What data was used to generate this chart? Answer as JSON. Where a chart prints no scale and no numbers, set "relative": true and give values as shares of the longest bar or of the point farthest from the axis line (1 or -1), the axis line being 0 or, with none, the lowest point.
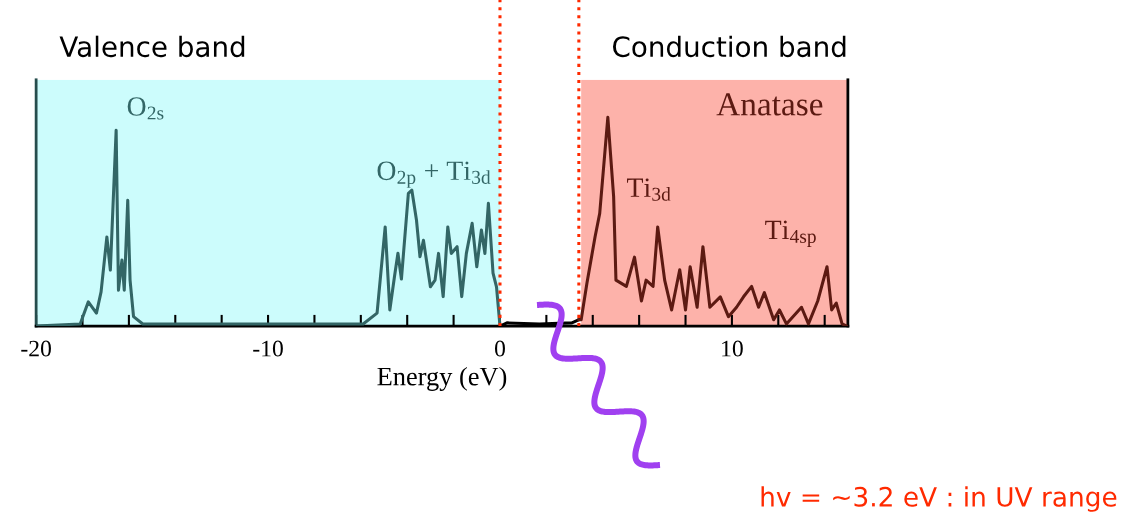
{
  "chart_data": {
    "type": "line",
    "relative": true,
    "xlabel": "Energy (eV)",
    "xlim": [
      -20,
      15
    ],
    "xticks": [
      {
        "value": -20,
        "label": "-20"
      },
      {
        "value": -18,
        "label": null
      },
      {
        "value": -16,
        "label": null
      },
      {
        "value": -14,
        "label": null
      },
      {
        "value": -12,
        "label": null
      },
      {
        "value": -10,
        "label": "-10"
      },
      {
        "value": -8,
        "label": null
      },
      {
        "value": -6,
        "label": null
      },
      {
        "value": -4,
        "label": null
      },
      {
        "value": -2,
        "label": null
      },
      0,
      {
        "value": 2,
        "label": null
      },
      {
        "value": 4,
        "label": null
      },
      {
        "value": 6,
        "label": null
      },
      {
        "value": 8,
        "label": null
      },
      10,
      {
        "value": 12,
        "label": null
      },
      {
        "value": 14,
        "label": null
      }
    ],
    "tick_labels": "x",
    "grid": false,
    "line_style": "solid",
    "marker": "none",
    "series": [
      {
        "color": "#336666",
        "x": [
          -20,
          -18.1,
          -17.75,
          -17.4,
          -17.2,
          -16.95,
          -16.8,
          -16.55,
          -16.45,
          -16.3,
          -16.2,
          -16.05,
          -15.95,
          -15.8,
          -15.4,
          -5.9,
          -5.3,
          -4.95,
          -4.75,
          -4.55,
          -4.4,
          -4.25,
          -3.95,
          -3.8,
          -3.6,
          -3.45,
          -3.3,
          -3.0,
          -2.8,
          -2.65,
          -2.45,
          -2.25,
          -2.1,
          -1.85,
          -1.65,
          -1.45,
          -1.2,
          -1.0,
          -0.8,
          -0.65,
          -0.5,
          -0.3,
          -0.15,
          0
        ],
        "values": [
          0,
          0.01,
          0.116,
          0.062,
          0.164,
          0.427,
          0.268,
          0.938,
          0.172,
          0.316,
          0.172,
          0.603,
          0.22,
          0.045,
          0.01,
          0.01,
          0.062,
          0.475,
          0.077,
          0.236,
          0.349,
          0.225,
          0.636,
          0.651,
          0.507,
          0.332,
          0.411,
          0.188,
          0.22,
          0.348,
          0.141,
          0.475,
          0.348,
          0.38,
          0.141,
          0.348,
          0.492,
          0.284,
          0.46,
          0.348,
          0.588,
          0.254,
          0.188,
          0
        ]
      },
      {
        "color": "#000000",
        "x": [
          0,
          0.3,
          1.7,
          3.1,
          3.4
        ],
        "values": [
          0,
          0.015,
          0.01,
          0.015,
          0.03
        ]
      },
      {
        "color": "#5c1a12",
        "x": [
          3.4,
          3.5,
          3.75,
          4.1,
          4.3,
          4.65,
          4.9,
          5.0,
          5.45,
          5.8,
          6.1,
          6.3,
          6.6,
          6.8,
          7.1,
          7.4,
          7.75,
          8.0,
          8.2,
          8.5,
          8.75,
          9.05,
          9.5,
          9.85,
          10.2,
          10.5,
          10.85,
          11.15,
          11.4,
          11.8,
          12.05,
          12.35,
          13.0,
          13.3,
          13.7,
          14.1,
          14.3,
          14.5,
          14.75,
          14.95
        ],
        "values": [
          0.03,
          0.03,
          0.206,
          0.428,
          0.54,
          1.0,
          0.62,
          0.22,
          0.19,
          0.33,
          0.12,
          0.22,
          0.19,
          0.475,
          0.22,
          0.077,
          0.27,
          0.077,
          0.284,
          0.09,
          0.38,
          0.09,
          0.14,
          0.045,
          0.09,
          0.14,
          0.19,
          0.09,
          0.16,
          0.03,
          0.077,
          0.01,
          0.09,
          0.01,
          0.12,
          0.284,
          0.077,
          0.11,
          0.01,
          0
        ]
      }
    ],
    "bands": [
      {
        "axis": "x",
        "from": -20,
        "to": 0,
        "label": "Valence band",
        "color": "#ccfcfc"
      },
      {
        "axis": "x",
        "from": 3.5,
        "to": 15,
        "label": "Conduction band",
        "color": "#fdb2aa"
      }
    ],
    "ref_lines": [
      {
        "axis": "x",
        "value": 0,
        "color": "#ff2a00",
        "line_style": "dotted"
      },
      {
        "axis": "x",
        "value": 3.4,
        "color": "#ff2a00",
        "line_style": "dotted"
      }
    ],
    "annotations": [
      "O$_{2s}$",
      "O$_{2p}$ + Ti$_{3d}$",
      "Ti$_{3d}$",
      "Ti$_{4sp}$",
      "Anatase",
      "hv = ~3.2 eV : in UV range"
    ]
  }
}
